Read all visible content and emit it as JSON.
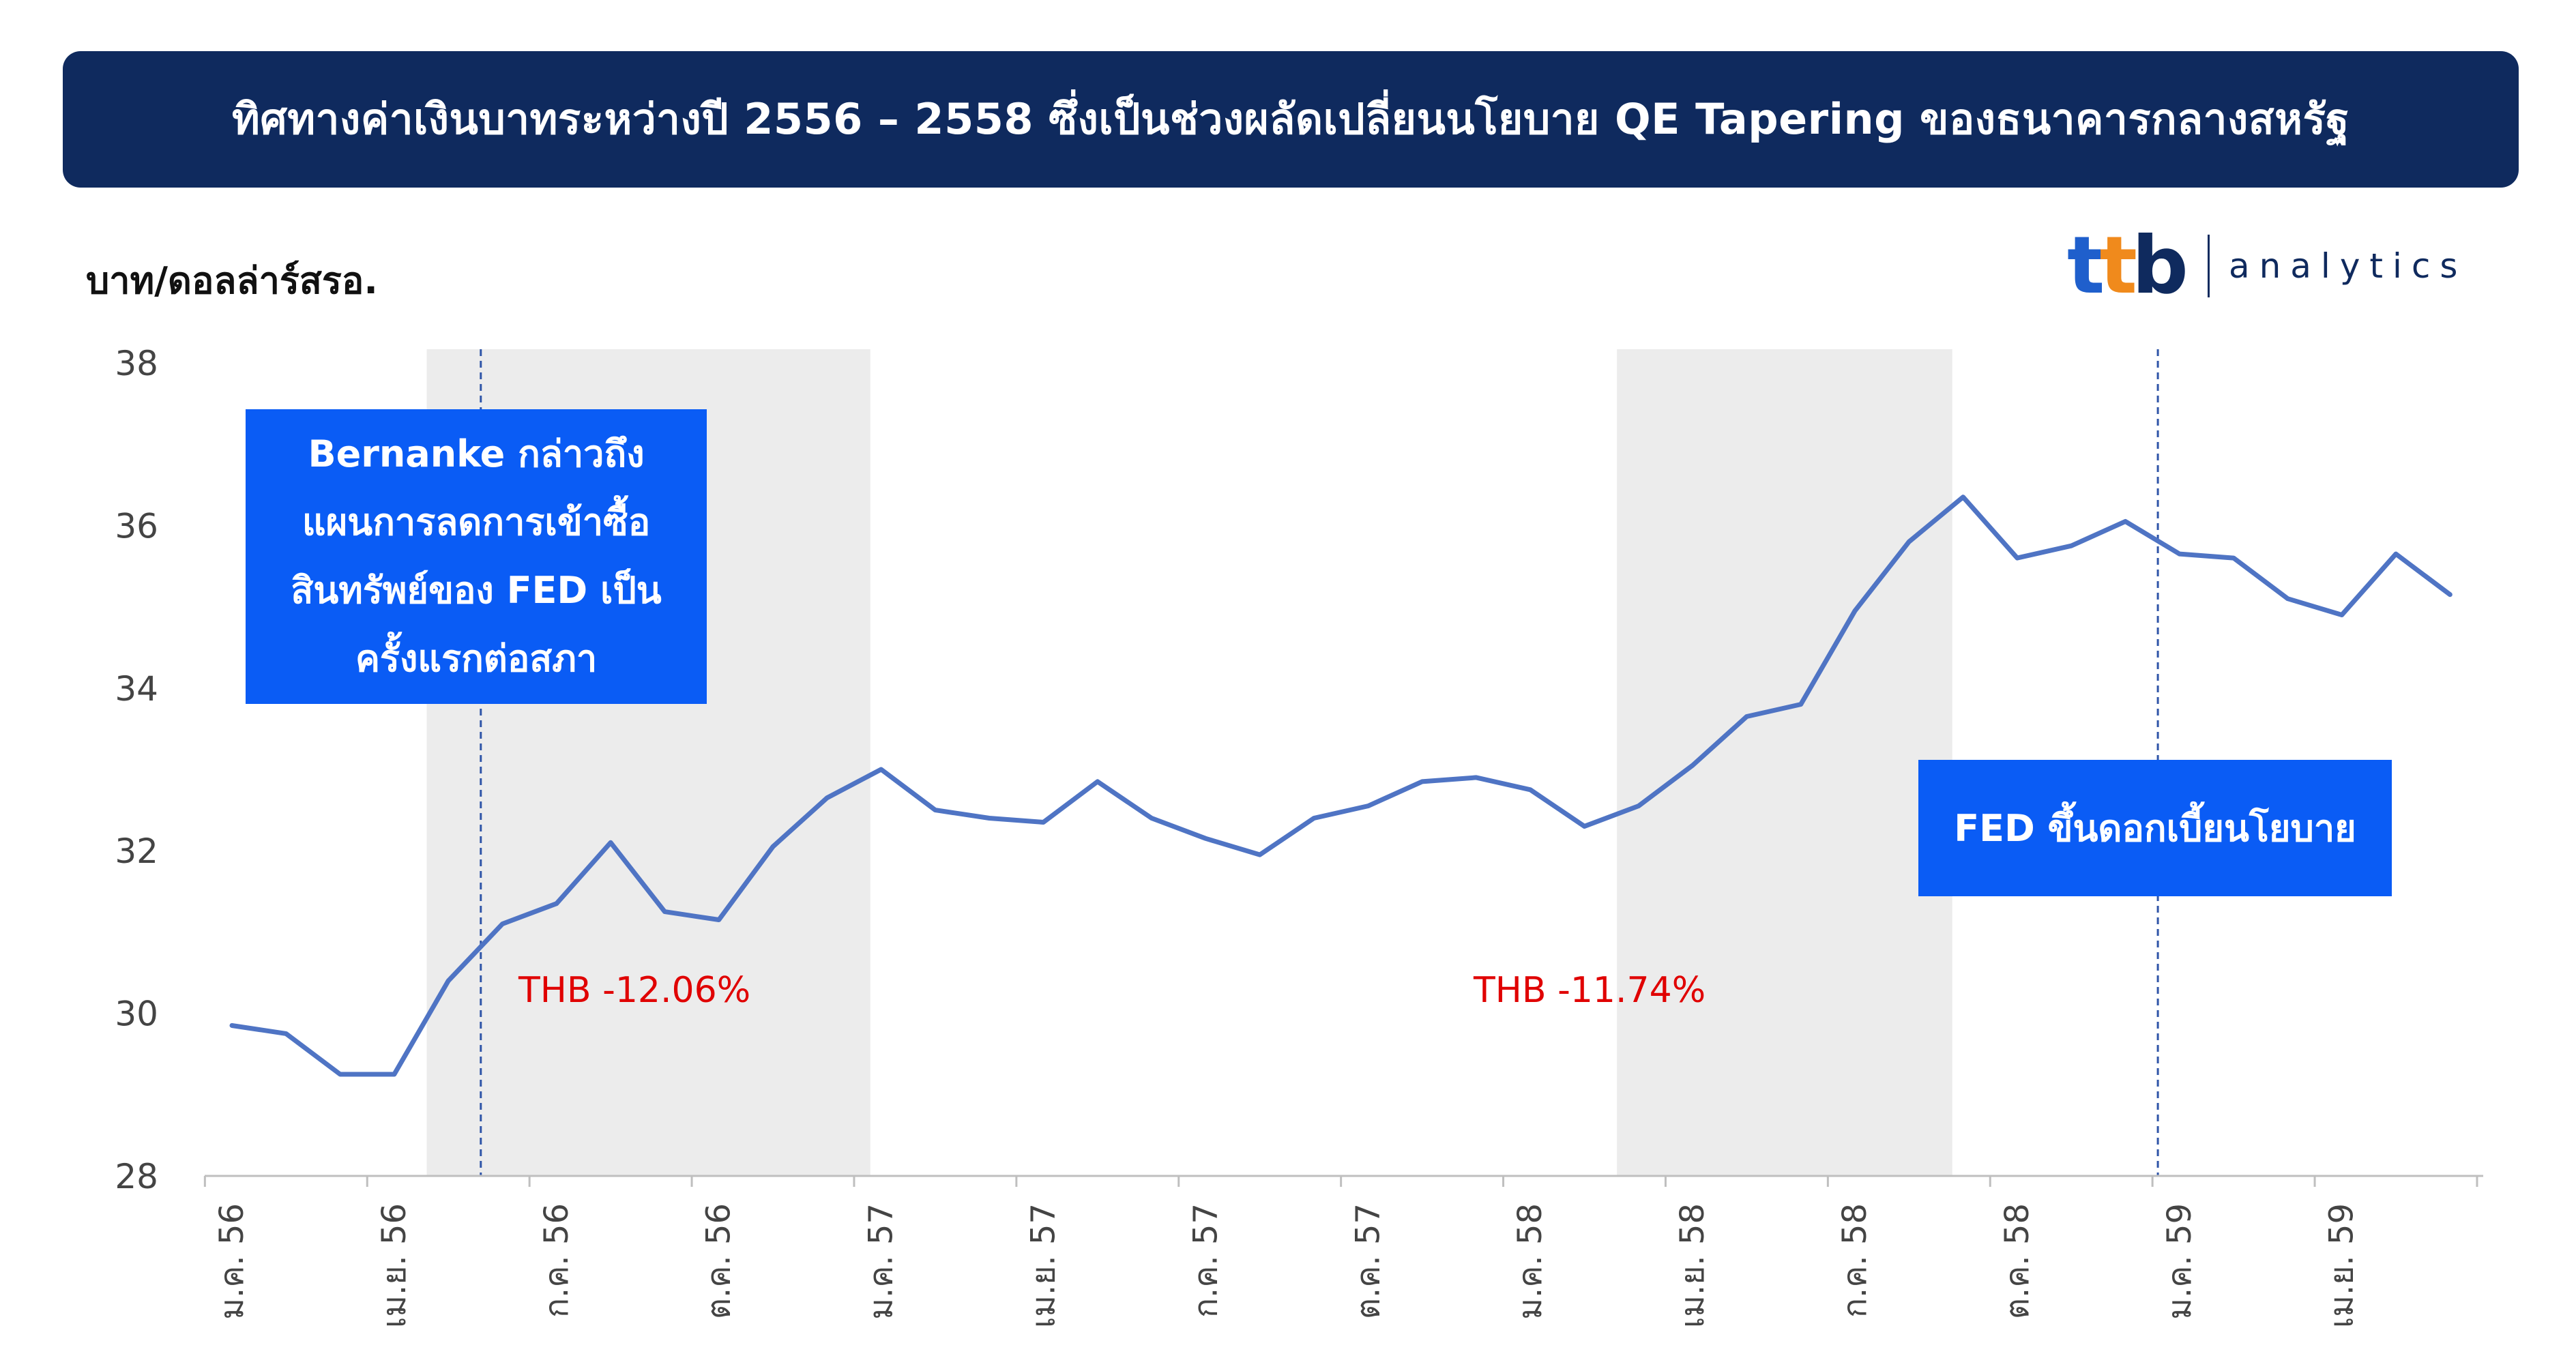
{
  "title": "ทิศทางค่าเงินบาทระหว่างปี 2556 – 2558 ซึ่งเป็นช่วงผลัดเปลี่ยนนโยบาย QE Tapering ของธนาคารกลางสหรัฐ",
  "logo": {
    "brand": "ttb",
    "brand_parts": [
      "t",
      "t",
      "b"
    ],
    "sub": "analytics"
  },
  "colors": {
    "title_bg": "#0f2a5e",
    "callout_bg": "#0a5cf5",
    "line": "#4f74c4",
    "shade": "#ececec",
    "pct_text": "#e00000"
  },
  "chart_data": {
    "type": "line",
    "ylabel": "บาท/ดอลล่าร์สรอ.",
    "ylim": [
      28,
      38
    ],
    "yticks": [
      "28",
      "30",
      "32",
      "34",
      "36",
      "38"
    ],
    "xticks": [
      "ม.ค. 56",
      "เม.ย. 56",
      "ก.ค. 56",
      "ต.ค. 56",
      "ม.ค. 57",
      "เม.ย. 57",
      "ก.ค. 57",
      "ต.ค. 57",
      "ม.ค. 58",
      "เม.ย. 58",
      "ก.ค. 58",
      "ต.ค. 58",
      "ม.ค. 59",
      "เม.ย. 59"
    ],
    "x": [
      "2013-01",
      "2013-02",
      "2013-03",
      "2013-04",
      "2013-05",
      "2013-06",
      "2013-07",
      "2013-08",
      "2013-09",
      "2013-10",
      "2013-11",
      "2013-12",
      "2014-01",
      "2014-02",
      "2014-03",
      "2014-04",
      "2014-05",
      "2014-06",
      "2014-07",
      "2014-08",
      "2014-09",
      "2014-10",
      "2014-11",
      "2014-12",
      "2015-01",
      "2015-02",
      "2015-03",
      "2015-04",
      "2015-05",
      "2015-06",
      "2015-07",
      "2015-08",
      "2015-09",
      "2015-10",
      "2015-11",
      "2015-12",
      "2016-01",
      "2016-02",
      "2016-03",
      "2016-04",
      "2016-05",
      "2016-06"
    ],
    "values": [
      29.85,
      29.75,
      29.25,
      29.25,
      30.4,
      31.1,
      31.35,
      32.1,
      31.25,
      31.15,
      32.05,
      32.65,
      33.0,
      32.5,
      32.4,
      32.35,
      32.85,
      32.4,
      32.15,
      31.95,
      32.4,
      32.55,
      32.85,
      32.9,
      32.75,
      32.3,
      32.55,
      33.05,
      33.65,
      33.8,
      34.95,
      35.8,
      36.35,
      35.6,
      35.75,
      36.05,
      35.65,
      35.6,
      35.1,
      34.9,
      35.65,
      35.15
    ],
    "shaded_periods": [
      {
        "start": "2013-04",
        "end": "2014-01",
        "label": "THB -12.06%"
      },
      {
        "start": "2015-02",
        "end": "2015-09",
        "label": "THB -11.74%"
      }
    ],
    "annotations": [
      {
        "at": "2013-05",
        "text": "Bernanke กล่าวถึง\nแผนการลดการเข้าซื้อ\nสินทรัพย์ของ FED เป็น\nครั้งแรกต่อสภา"
      },
      {
        "at": "2015-12",
        "text": "FED ขึ้นดอกเบี้ยนโยบาย"
      }
    ]
  }
}
